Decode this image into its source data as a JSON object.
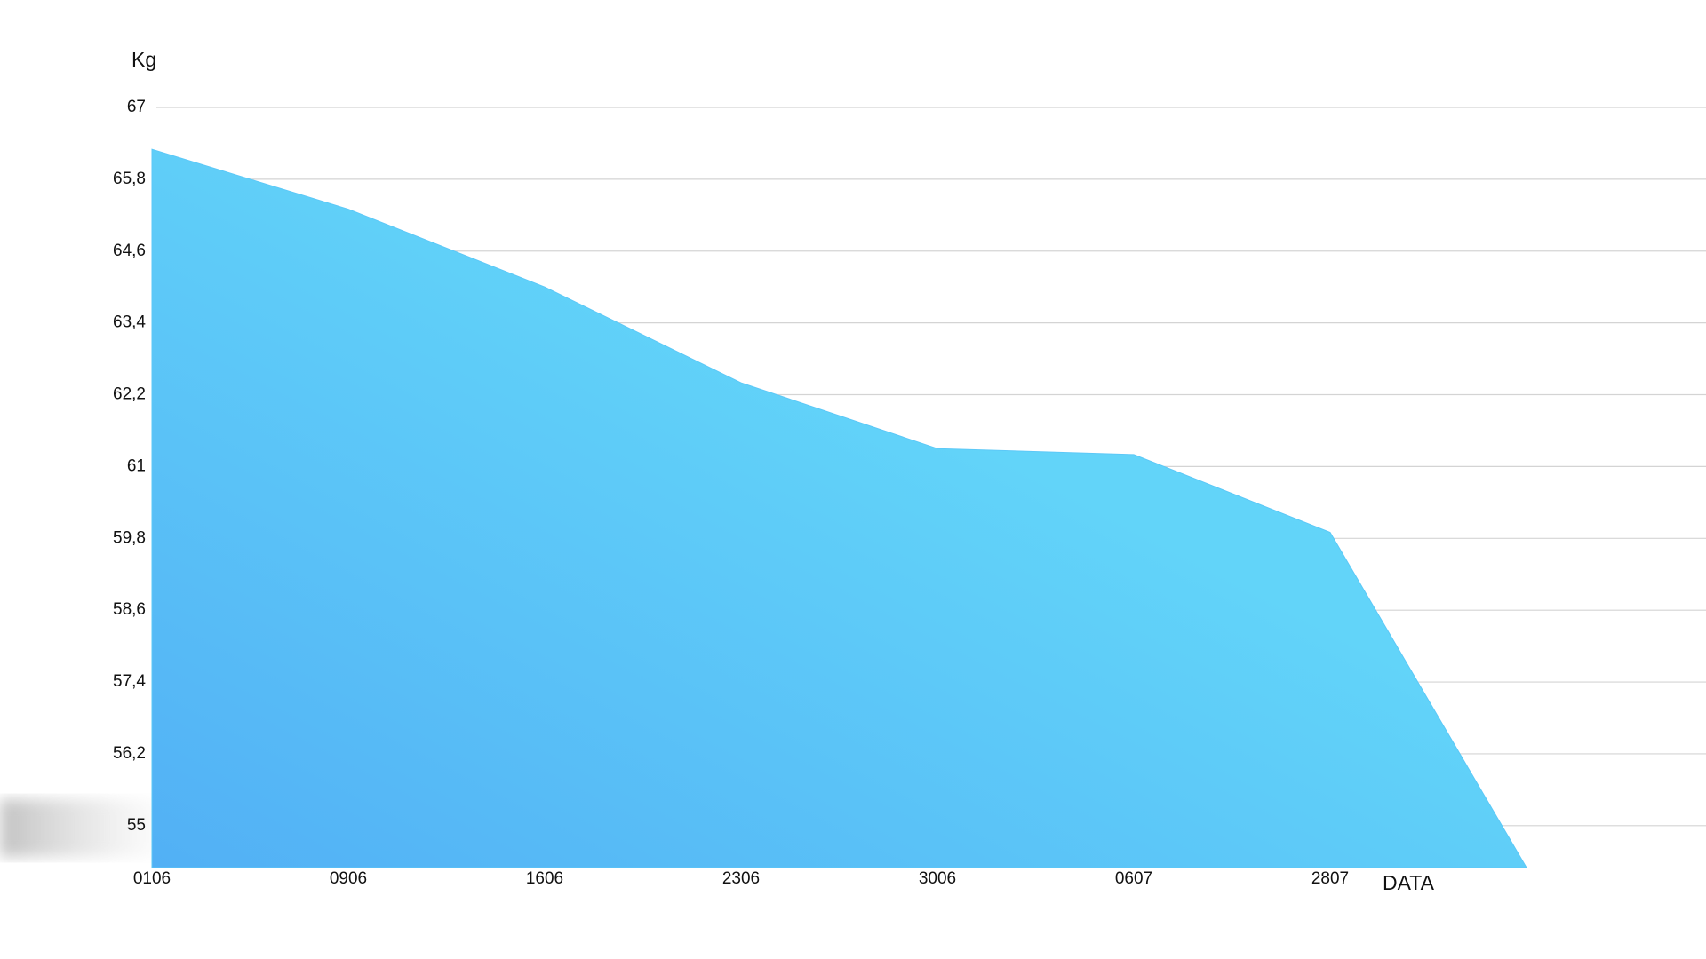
{
  "chart_data": {
    "type": "area",
    "y_label": "Kg",
    "x_label": "DATA",
    "categories": [
      "0106",
      "0906",
      "1606",
      "2306",
      "3006",
      "0607",
      "2807",
      null
    ],
    "values": [
      66.3,
      65.3,
      64.0,
      62.4,
      61.3,
      61.2,
      59.9,
      54.3
    ],
    "color": "#5cc8f7",
    "ylim": [
      54.3,
      67
    ],
    "yticks": [
      55,
      {
        "value": 56.2,
        "label": "56,2"
      },
      {
        "value": 57.4,
        "label": "57,4"
      },
      {
        "value": 58.6,
        "label": "58,6"
      },
      {
        "value": 59.8,
        "label": "59,8"
      },
      61,
      {
        "value": 62.2,
        "label": "62,2"
      },
      {
        "value": 63.4,
        "label": "63,4"
      },
      {
        "value": 64.6,
        "label": "64,6"
      },
      {
        "value": 65.8,
        "label": "65,8"
      },
      67
    ],
    "grid": true
  }
}
